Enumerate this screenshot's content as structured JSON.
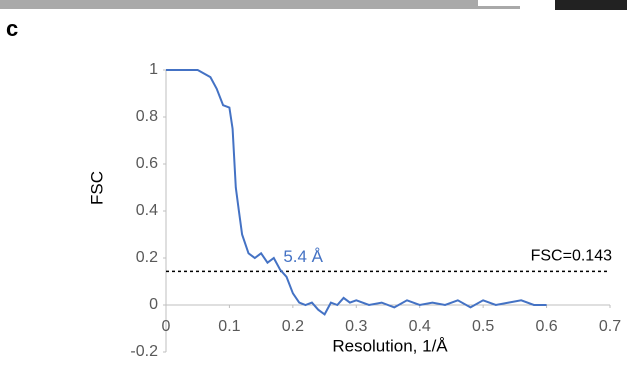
{
  "panel_label": "c",
  "chart_data": {
    "type": "line",
    "x": [
      0,
      0.05,
      0.07,
      0.08,
      0.09,
      0.1,
      0.105,
      0.11,
      0.115,
      0.12,
      0.13,
      0.14,
      0.15,
      0.16,
      0.17,
      0.18,
      0.19,
      0.2,
      0.21,
      0.22,
      0.23,
      0.24,
      0.25,
      0.26,
      0.27,
      0.28,
      0.29,
      0.3,
      0.32,
      0.34,
      0.36,
      0.38,
      0.4,
      0.42,
      0.44,
      0.46,
      0.48,
      0.5,
      0.52,
      0.54,
      0.56,
      0.58,
      0.6
    ],
    "values": [
      1,
      1,
      0.97,
      0.92,
      0.85,
      0.84,
      0.75,
      0.5,
      0.4,
      0.3,
      0.22,
      0.2,
      0.22,
      0.18,
      0.2,
      0.15,
      0.12,
      0.05,
      0.01,
      0,
      0.01,
      -0.02,
      -0.04,
      0.01,
      0,
      0.03,
      0.01,
      0.02,
      0,
      0.01,
      -0.01,
      0.02,
      0,
      0.01,
      0,
      0.02,
      -0.01,
      0.02,
      0,
      0.01,
      0.02,
      0,
      0
    ],
    "color": "#4472c4",
    "xlabel": "Resolution, 1/Å",
    "ylabel": "FSC",
    "xlim": [
      0,
      0.7
    ],
    "xticks": [
      0,
      0.1,
      0.2,
      0.3,
      0.4,
      0.5,
      0.6,
      0.7
    ],
    "ylim": [
      -0.2,
      1
    ],
    "yticks": [
      -0.2,
      0,
      0.2,
      0.4,
      0.6,
      0.8,
      1
    ],
    "threshold": 0.143,
    "threshold_label": "FSC=0.143",
    "annotation": "5.4 Å"
  }
}
